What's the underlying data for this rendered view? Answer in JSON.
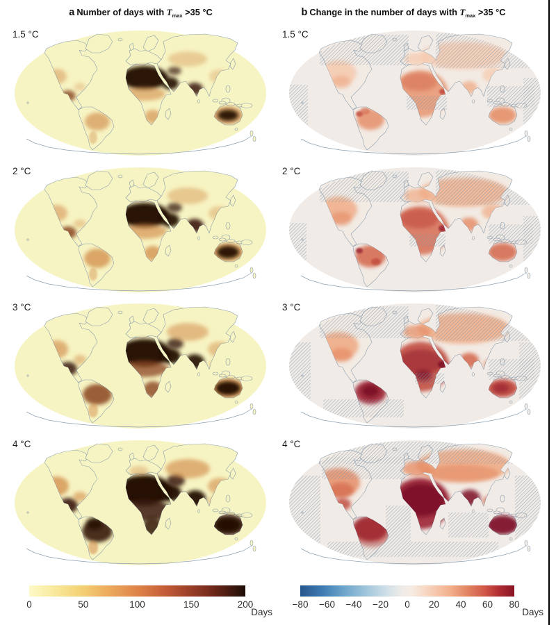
{
  "figure": {
    "panels": {
      "a": {
        "index": "a",
        "title": "Number of days with",
        "symbol": "T",
        "symbol_sub": "max",
        "threshold": ">35 °C"
      },
      "b": {
        "index": "b",
        "title": "Change in the number of days with",
        "symbol": "T",
        "symbol_sub": "max",
        "threshold": ">35 °C"
      }
    },
    "row_labels": [
      "1.5 °C",
      "2 °C",
      "3 °C",
      "4 °C"
    ],
    "colorbar_a": {
      "ticks": [
        "0",
        "50",
        "100",
        "150",
        "200"
      ],
      "unit": "Days"
    },
    "colorbar_b": {
      "ticks": [
        "−80",
        "−60",
        "−40",
        "−20",
        "0",
        "20",
        "40",
        "60",
        "80"
      ],
      "unit": "Days"
    }
  },
  "chart_data": {
    "type": "heatmap",
    "layout": "4x2 grid of global maps, Robinson projection; rows are warming scenarios, columns are panels a and b",
    "scenarios_degC": [
      1.5,
      2,
      3,
      4
    ],
    "panels": [
      {
        "panel": "a",
        "title": "Number of days with Tmax >35 °C",
        "units": "Days",
        "scale_range": [
          0,
          200
        ],
        "scale_ticks": [
          0,
          50,
          100,
          150,
          200
        ],
        "colormap": "pale yellow (0) through orange and red-brown to near-black (200)",
        "readings": [
          {
            "scenario_degC": 1.5,
            "summary": "Sahara, Arabian Peninsula, NW India and interior Australia reach 150-200+ days; Mexico/SW USA, Sahel, southern Africa and interior Brazil about 50-120 days; mid and high latitudes near 0."
          },
          {
            "scenario_degC": 2,
            "summary": "Hot cores expand slightly over Sahara, Middle East, South Asia and Australia; Brazil and Mexico deepen toward 80-140 days."
          },
          {
            "scenario_degC": 3,
            "summary": "Dark >150-day zone spreads over most of northern/central Africa, Middle East, South Asia and nearly all interior Australia; Amazon interior turns dark brown."
          },
          {
            "scenario_degC": 4,
            "summary": "Most of Africa, Arabia, South Asia, Australia and the Amazon exceed 150-200 days; orange spread widens into southern USA, southern Europe, central Asia and China."
          }
        ]
      },
      {
        "panel": "b",
        "title": "Change in the number of days with Tmax >35 °C",
        "units": "Days",
        "scale_range": [
          -80,
          80
        ],
        "scale_ticks": [
          -80,
          -60,
          -40,
          -20,
          0,
          20,
          40,
          60,
          80
        ],
        "colormap": "diverging blue (decrease) through white to dark red (increase)",
        "hatching": "fine diagonal hatching marks regions without robust change (high latitudes, oceans, parts of tropics)",
        "readings": [
          {
            "scenario_degC": 1.5,
            "summary": "Increases of about 10-40 days over Africa, Amazon, Australia and southern Eurasia; Arctic land and Siberia hatched."
          },
          {
            "scenario_degC": 2,
            "summary": "Increases deepen to 20-50 days across the tropics; dark red spots in the Amazon, Horn of Africa and northern South America."
          },
          {
            "scenario_degC": 3,
            "summary": "Widespread 40-70 day increases; Amazon, central Africa and Australia show dark red; hatching expands over oceans."
          },
          {
            "scenario_degC": 4,
            "summary": "Deep red 70-80+ day increases cover the Amazon, most of Africa, Australia and South Asia; extensive hatching over oceans and high latitudes."
          }
        ]
      }
    ]
  }
}
